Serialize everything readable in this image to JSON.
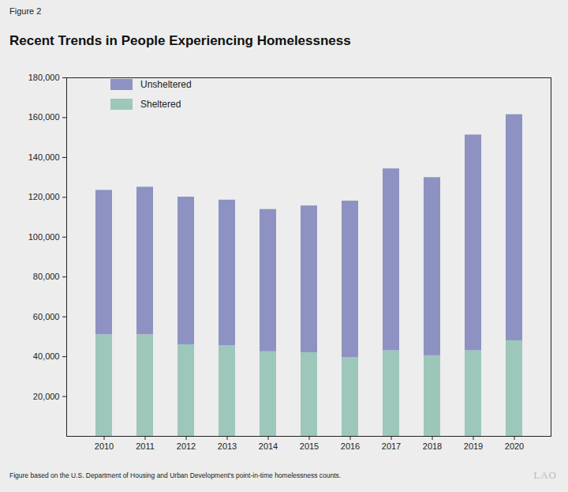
{
  "chart_data": {
    "type": "bar",
    "figure_label": "Figure 2",
    "title": "Recent Trends in People Experiencing Homelessness",
    "caption": "Figure based on the U.S. Department of Housing and Urban Development's point-in-time homelessness counts.",
    "logo": "LAO",
    "stacked": true,
    "grid": false,
    "legend": "top-left",
    "categories": [
      "2010",
      "2011",
      "2012",
      "2013",
      "2014",
      "2015",
      "2016",
      "2017",
      "2018",
      "2019",
      "2020"
    ],
    "series": [
      {
        "name": "Sheltered",
        "color": "#9dc7bb",
        "values": [
          51000,
          51000,
          46000,
          45500,
          42500,
          42000,
          39500,
          43000,
          40500,
          43000,
          48000
        ]
      },
      {
        "name": "Unsheltered",
        "color": "#8d92c2",
        "values": [
          72500,
          74100,
          74100,
          73100,
          71400,
          73700,
          78600,
          91300,
          89400,
          108300,
          113500
        ]
      }
    ],
    "ylim": [
      0,
      180000
    ],
    "yticks": [
      {
        "value": 20000,
        "label": "20,000"
      },
      {
        "value": 40000,
        "label": "40,000"
      },
      {
        "value": 60000,
        "label": "60,000"
      },
      {
        "value": 80000,
        "label": "80,000"
      },
      {
        "value": 100000,
        "label": "100,000"
      },
      {
        "value": 120000,
        "label": "120,000"
      },
      {
        "value": 140000,
        "label": "140,000"
      },
      {
        "value": 160000,
        "label": "160,000"
      },
      {
        "value": 180000,
        "label": "180,000"
      }
    ]
  }
}
